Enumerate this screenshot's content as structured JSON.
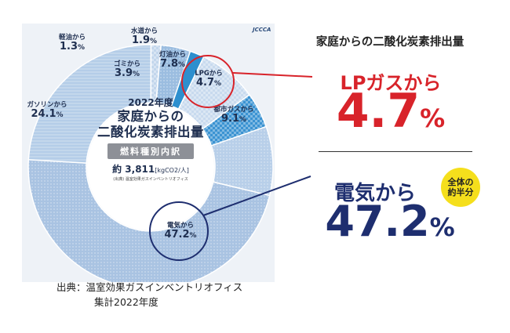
{
  "chart_data": {
    "type": "pie",
    "style": "donut",
    "title": "2022年度 家庭からの二酸化炭素排出量",
    "subtitle": "燃料種別内訳",
    "total_label": "約",
    "total_value": "3,811",
    "total_unit": "[kgCO2/人]",
    "small_source": "(出典) 温室効果ガスインベントリオフィス",
    "unit": "%",
    "slices": [
      {
        "name": "電気から",
        "value": 47.2,
        "color": "#a9c3e2"
      },
      {
        "name": "ガソリンから",
        "value": 24.1,
        "color": "#b4cde8"
      },
      {
        "name": "軽油から",
        "value": 1.3,
        "color": "#c2d6ec"
      },
      {
        "name": "ゴミから",
        "value": 3.9,
        "color": "#9bbde0"
      },
      {
        "name": "水道から",
        "value": 1.9,
        "color": "#2d8fce"
      },
      {
        "name": "灯油から",
        "value": 7.8,
        "color": "#c8daee"
      },
      {
        "name": "LPGから",
        "value": 4.7,
        "color": "#3b93d2"
      },
      {
        "name": "都市ガスから",
        "value": 9.1,
        "color": "#b8cfe9"
      }
    ]
  },
  "logo": "JCCCA",
  "right_title": "家庭からの二酸化炭素排出量",
  "lpg": {
    "label": "LPガスから",
    "value": "4.7",
    "unit": "%"
  },
  "electric": {
    "label": "電気から",
    "value": "47.2",
    "unit": "%",
    "badge": "全体の約半分"
  },
  "source": {
    "line1": "出典：温室効果ガスインベントリオフィス",
    "line2": "集計2022年度"
  }
}
